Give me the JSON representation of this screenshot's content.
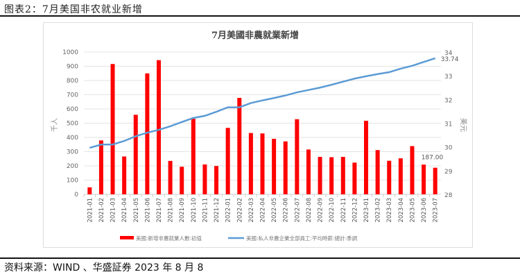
{
  "header": {
    "title": "图表2：7月美国非农就业新增"
  },
  "footer": {
    "source": "资料来源：WIND 、华盛証券 2023 年 8 月 8"
  },
  "chart_data": {
    "type": "bar+line",
    "title": "7月美國非農就業新增",
    "ylabel_left": "千人",
    "ylabel_right": "美元",
    "ylim_left": [
      0,
      1000
    ],
    "ylim_right": [
      28,
      34
    ],
    "yticks_left": [
      0,
      100,
      200,
      300,
      400,
      500,
      600,
      700,
      800,
      900,
      1000
    ],
    "yticks_right": [
      28,
      29,
      30,
      31,
      32,
      33,
      34
    ],
    "grid": true,
    "legend": "bottom",
    "categories": [
      "2021-01",
      "2021-02",
      "2021-03",
      "2021-04",
      "2021-05",
      "2021-06",
      "2021-07",
      "2021-08",
      "2021-09",
      "2021-10",
      "2021-11",
      "2021-12",
      "2022-01",
      "2022-02",
      "2022-03",
      "2022-04",
      "2022-05",
      "2022-06",
      "2022-07",
      "2022-08",
      "2022-09",
      "2022-10",
      "2022-11",
      "2022-12",
      "2023-01",
      "2023-02",
      "2023-03",
      "2023-04",
      "2023-05",
      "2023-06",
      "2023-07"
    ],
    "series": [
      {
        "name": "美國:新增非農就業人數:初值",
        "type": "bar",
        "axis": "left",
        "color": "#ff0000",
        "values": [
          49,
          379,
          916,
          266,
          559,
          850,
          943,
          235,
          194,
          531,
          210,
          199,
          467,
          678,
          431,
          428,
          390,
          372,
          528,
          315,
          263,
          261,
          263,
          223,
          517,
          311,
          236,
          253,
          339,
          209,
          187
        ]
      },
      {
        "name": "美國:私人非農企業全部員工:平均時薪:總計:季調",
        "type": "line",
        "axis": "right",
        "color": "#5b9bd5",
        "values": [
          29.96,
          30.1,
          30.1,
          30.25,
          30.45,
          30.6,
          30.72,
          30.87,
          31.05,
          31.22,
          31.31,
          31.48,
          31.67,
          31.67,
          31.85,
          31.96,
          32.06,
          32.17,
          32.3,
          32.4,
          32.5,
          32.62,
          32.75,
          32.88,
          32.98,
          33.07,
          33.15,
          33.3,
          33.42,
          33.58,
          33.74
        ]
      }
    ],
    "annotations": [
      "187.00",
      "33.74"
    ]
  }
}
